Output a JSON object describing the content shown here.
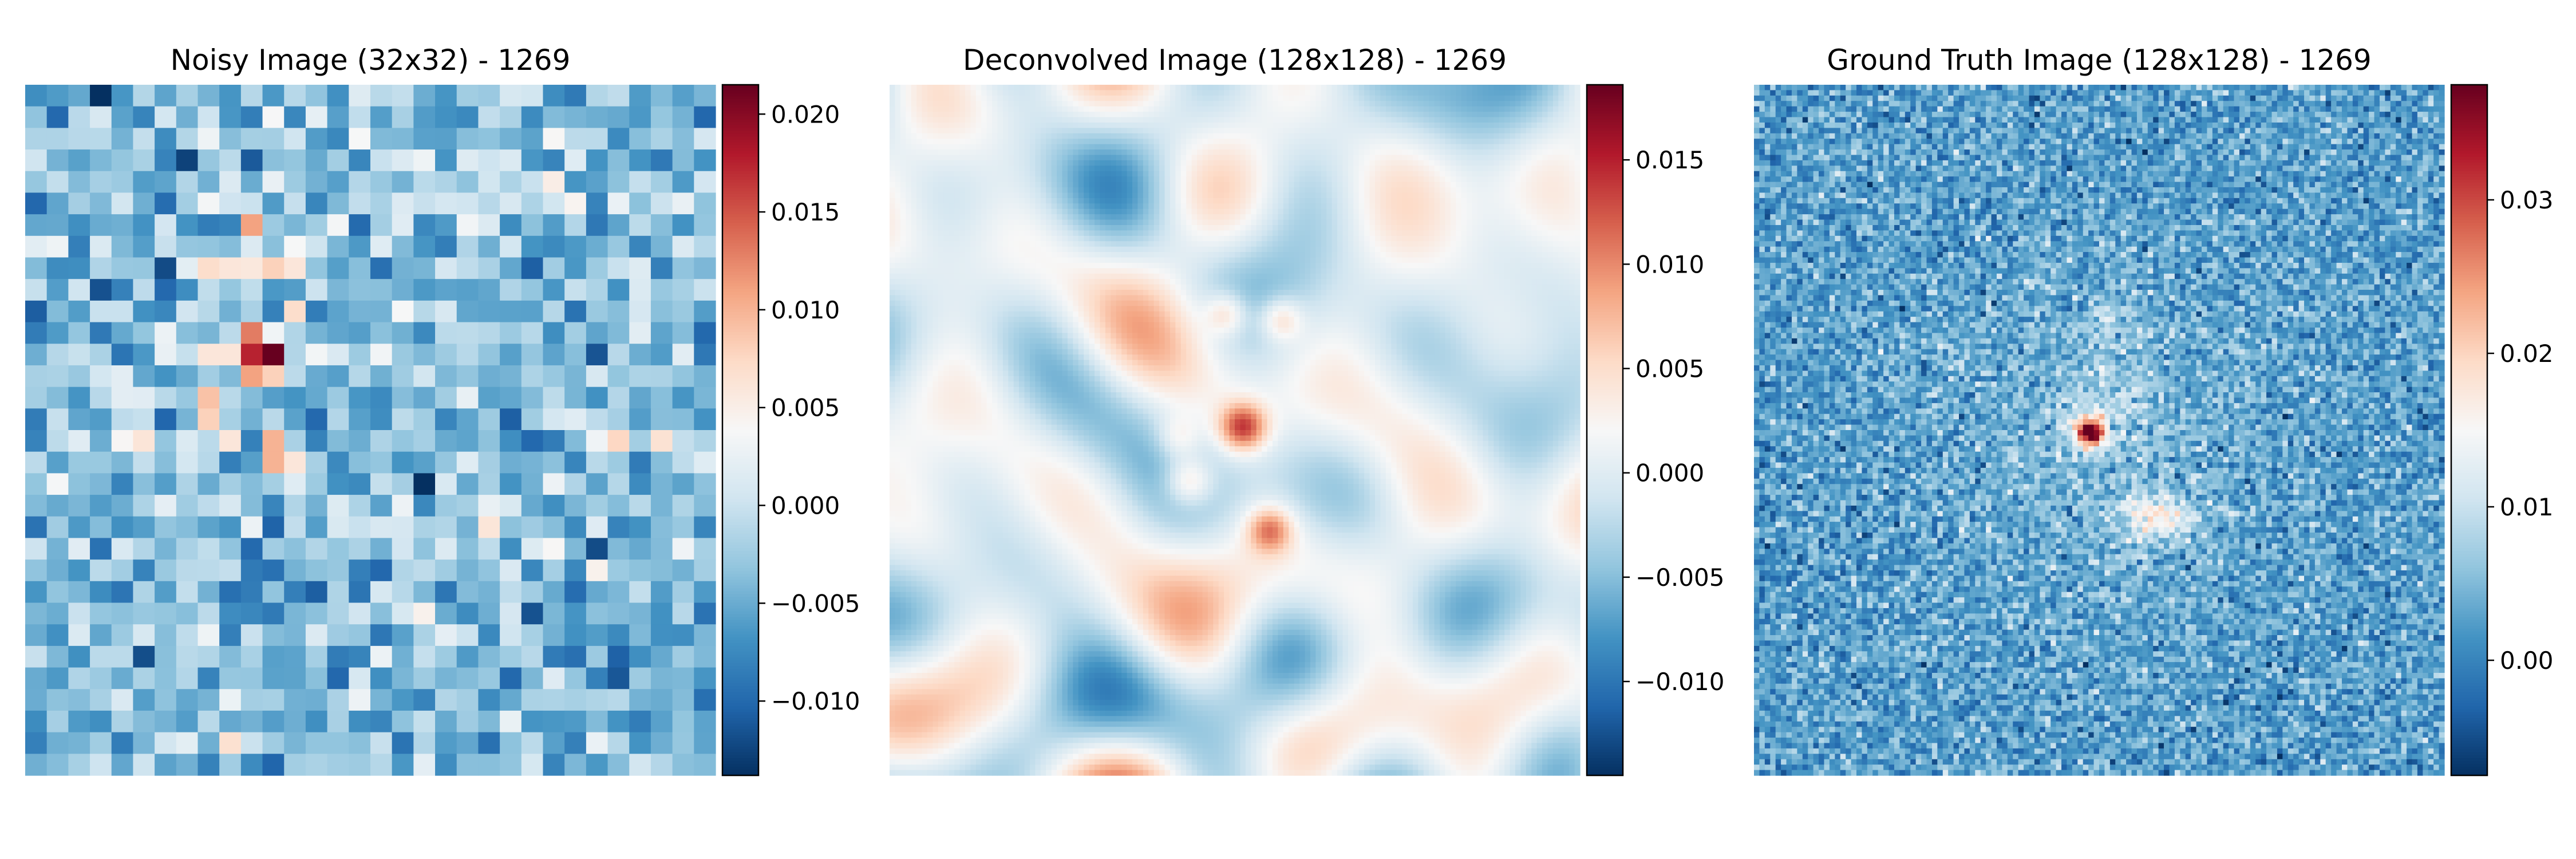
{
  "chart_data": [
    {
      "type": "heatmap",
      "title": "Noisy Image (32x32) - 1269",
      "grid_size": 32,
      "colormap": "RdBu_r",
      "vmin": -0.0138,
      "vmax": 0.0215,
      "colorbar_ticks": [
        -0.01,
        -0.005,
        0.0,
        0.005,
        0.01,
        0.015,
        0.02
      ],
      "colorbar_tick_labels": [
        "−0.010",
        "−0.005",
        "0.000",
        "0.005",
        "0.010",
        "0.015",
        "0.020"
      ],
      "seed": 11
    },
    {
      "type": "heatmap",
      "title": "Deconvolved Image (128x128) - 1269",
      "grid_size": 128,
      "colormap": "RdBu_r",
      "vmin": -0.0145,
      "vmax": 0.0186,
      "colorbar_ticks": [
        -0.01,
        -0.005,
        0.0,
        0.005,
        0.01,
        0.015
      ],
      "colorbar_tick_labels": [
        "−0.010",
        "−0.005",
        "0.000",
        "0.005",
        "0.010",
        "0.015"
      ],
      "seed": 23
    },
    {
      "type": "heatmap",
      "title": "Ground Truth Image (128x128) - 1269",
      "grid_size": 128,
      "colormap": "RdBu_r",
      "vmin": -0.0075,
      "vmax": 0.0375,
      "colorbar_ticks": [
        0.0,
        0.01,
        0.02,
        0.03
      ],
      "colorbar_tick_labels": [
        "0.00",
        "0.01",
        "0.02",
        "0.03"
      ],
      "seed": 37
    }
  ],
  "colors": {
    "colormap_stops": [
      "#053061",
      "#2166ac",
      "#4393c3",
      "#92c5de",
      "#d1e5f0",
      "#f7f7f7",
      "#fddbc7",
      "#f4a582",
      "#d6604d",
      "#b2182b",
      "#67001f"
    ]
  }
}
